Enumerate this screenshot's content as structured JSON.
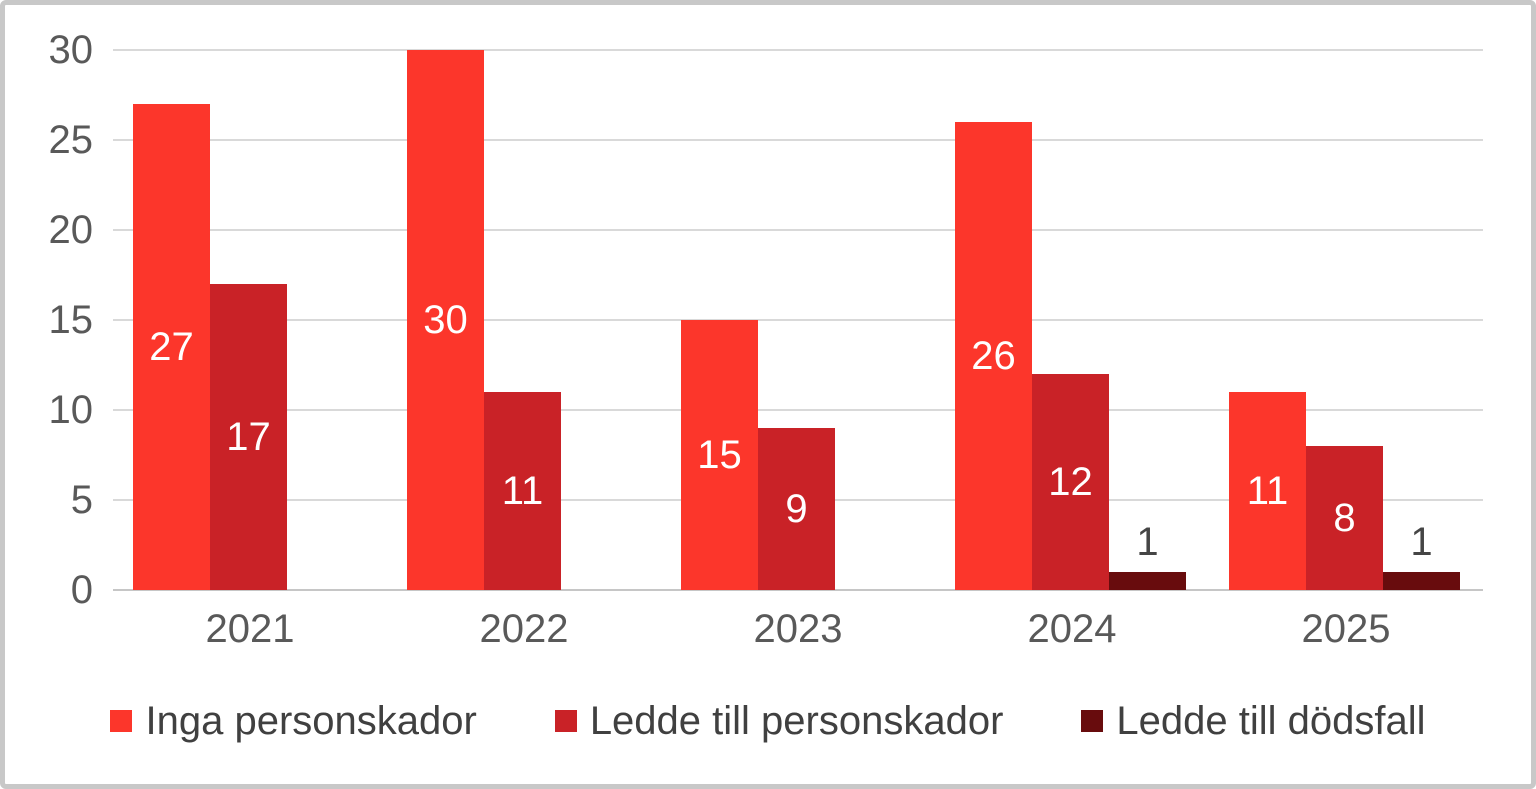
{
  "chart_data": {
    "type": "bar",
    "title": "",
    "xlabel": "",
    "ylabel": "",
    "categories": [
      "2021",
      "2022",
      "2023",
      "2024",
      "2025"
    ],
    "series": [
      {
        "name": "Inga personskador",
        "color": "#fc362b",
        "values": [
          27,
          30,
          15,
          26,
          11
        ]
      },
      {
        "name": "Ledde till personskador",
        "color": "#c92227",
        "values": [
          17,
          11,
          9,
          12,
          8
        ]
      },
      {
        "name": "Ledde till dödsfall",
        "color": "#680c0d",
        "values": [
          0,
          0,
          0,
          1,
          1
        ]
      }
    ],
    "ylim": [
      0,
      30
    ],
    "y_ticks": [
      0,
      5,
      10,
      15,
      20,
      25,
      30
    ],
    "grid": "horizontal",
    "legend_position": "bottom",
    "colors": {
      "axis_text": "#595959",
      "gridline": "#d9d9d9",
      "baseline": "#c6c6c6",
      "label_inside": "#ffffff",
      "label_outside": "#454545",
      "legend_text": "#404040",
      "frame_border": "#c8c8c8",
      "background": "#ffffff"
    }
  }
}
